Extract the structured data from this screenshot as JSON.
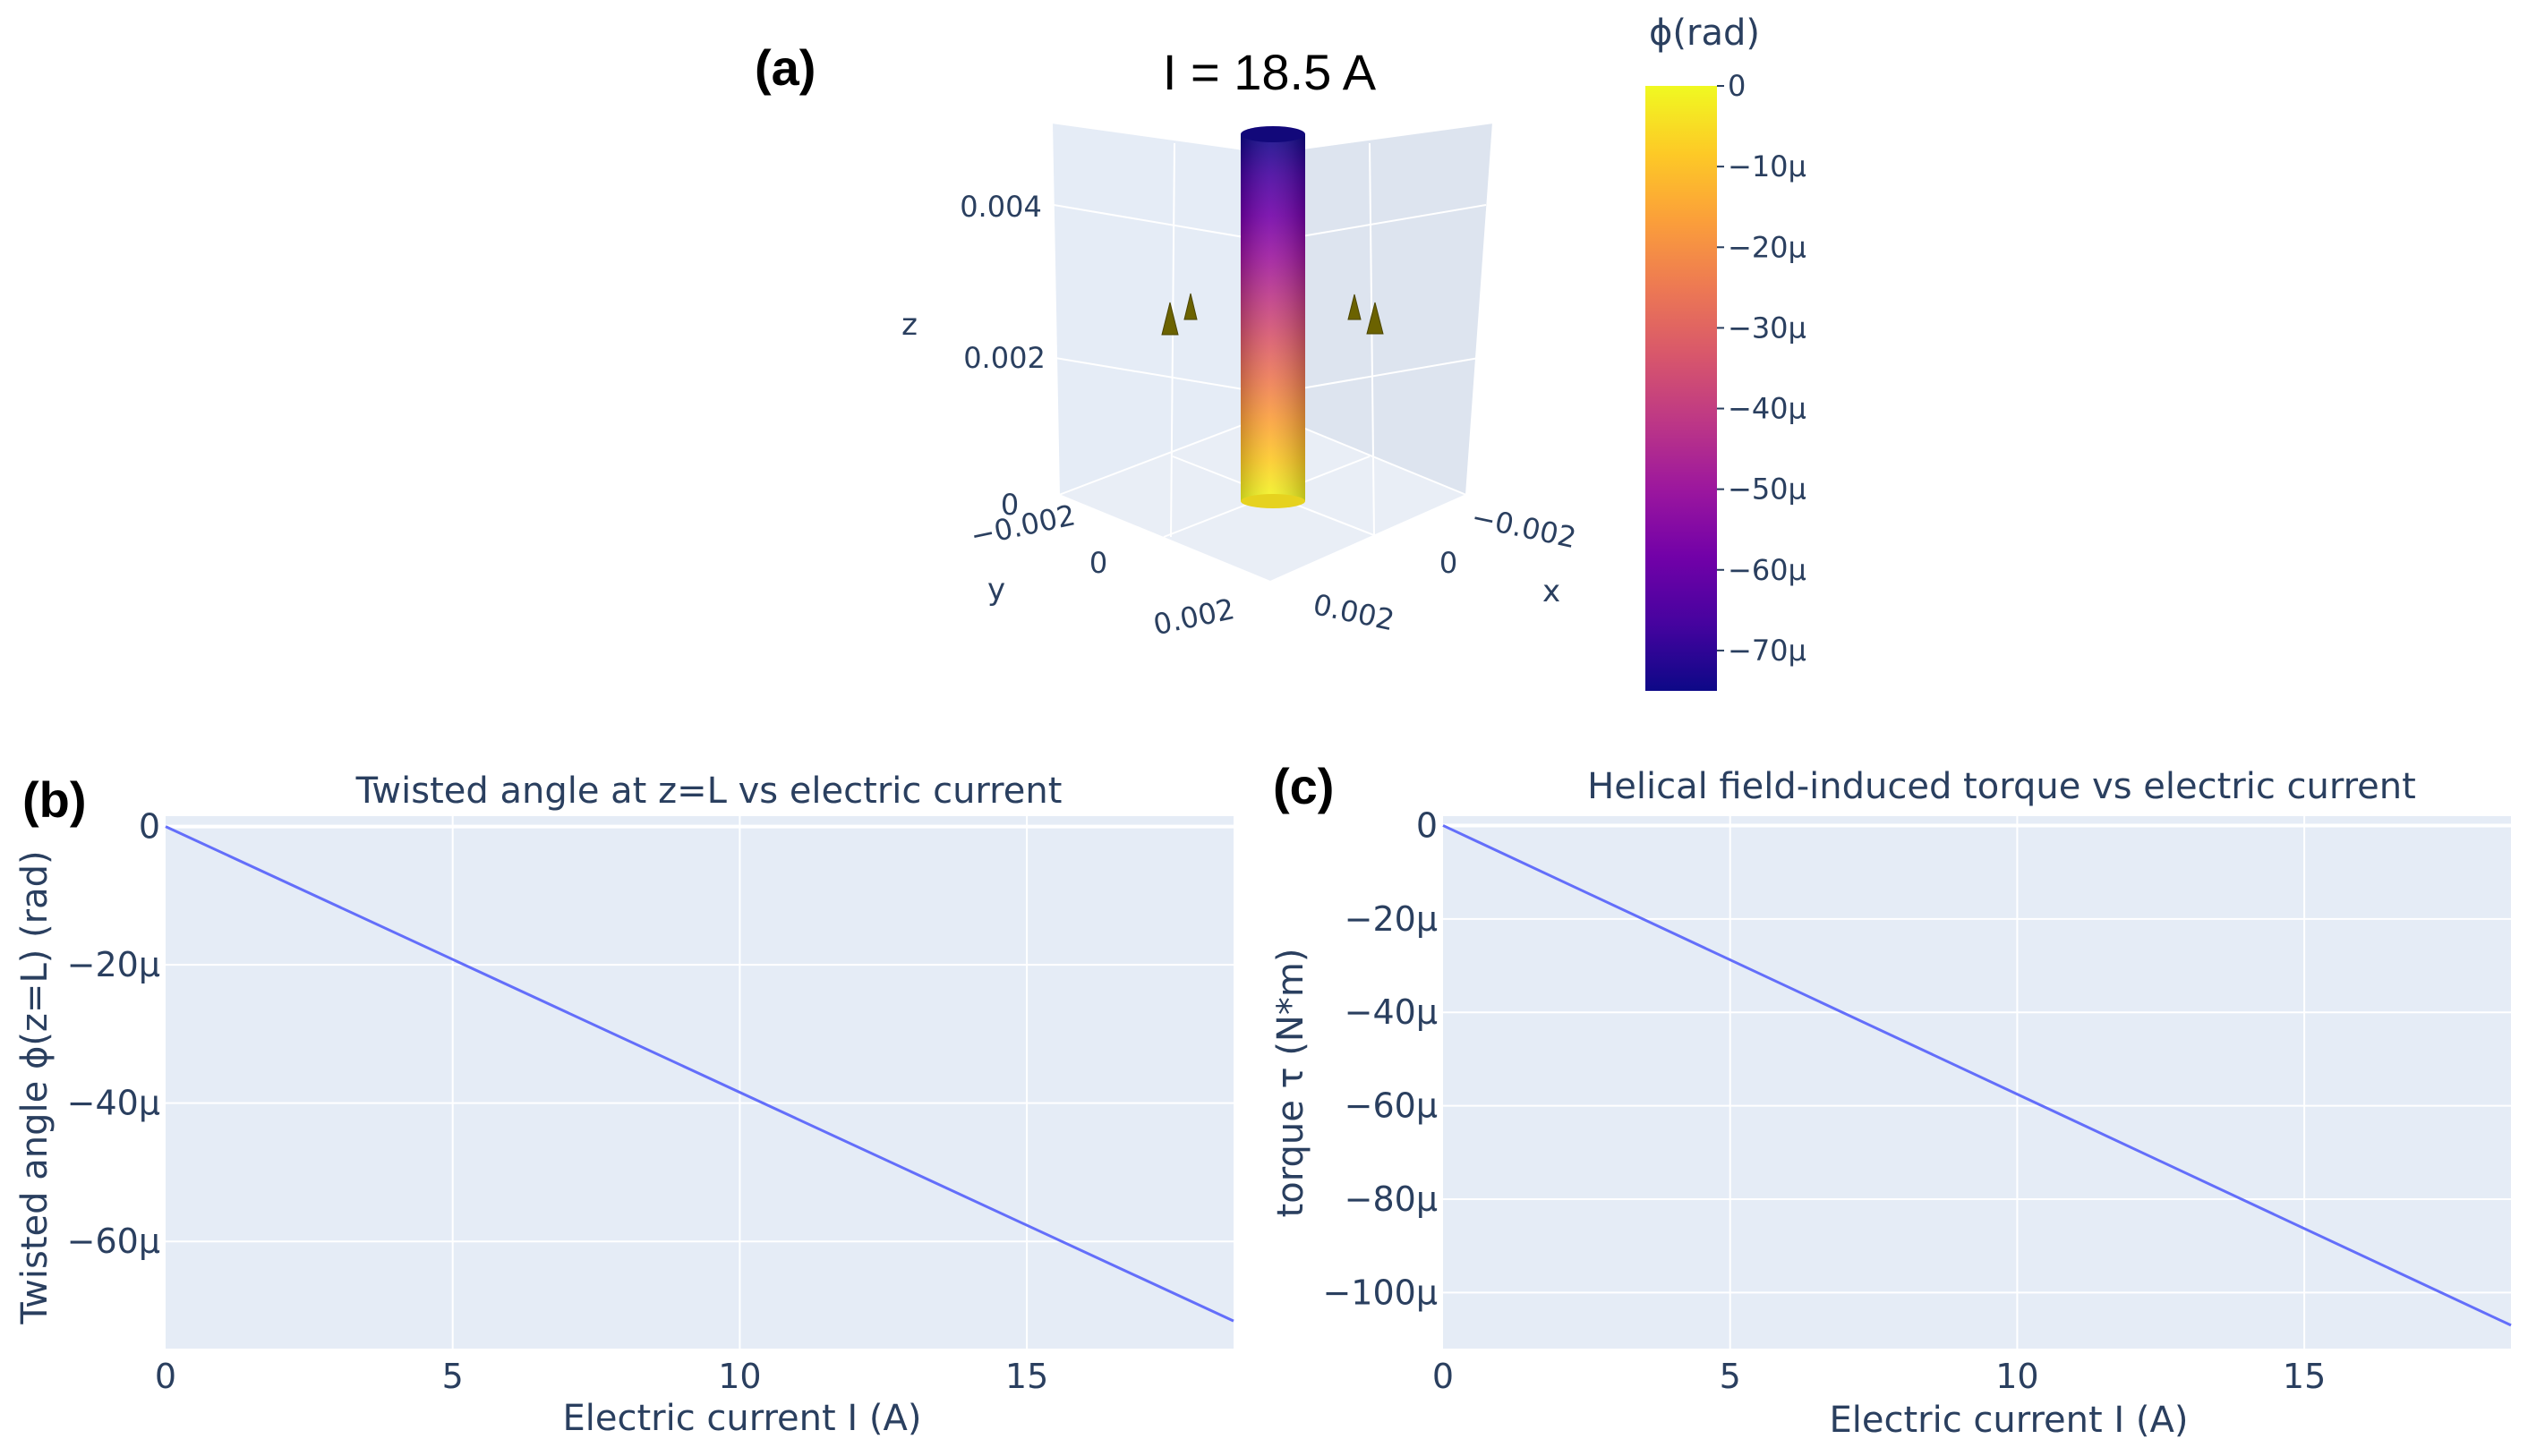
{
  "panel_labels": {
    "a": "(a)",
    "b": "(b)",
    "c": "(c)"
  },
  "colors": {
    "plot_bg": "#e5ecf6",
    "grid": "#ffffff",
    "line": "#636efa",
    "text": "#2a3f5f",
    "marker": "#6b6200"
  },
  "chart_data": [
    {
      "type": "surface3d",
      "title": "I = 18.5 A",
      "axes": {
        "x": {
          "label": "x",
          "ticks": [
            "−0.002",
            "0",
            "0.002"
          ]
        },
        "y": {
          "label": "y",
          "ticks": [
            "−0.002",
            "0",
            "0.002"
          ]
        },
        "z": {
          "label": "z",
          "ticks": [
            "0",
            "0.002",
            "0.004"
          ]
        }
      },
      "colorbar": {
        "title": "ϕ(rad)",
        "range": [
          -7.5e-05,
          0
        ],
        "ticks": [
          {
            "value": 0,
            "label": "0"
          },
          {
            "value": -1e-05,
            "label": "−10μ"
          },
          {
            "value": -2e-05,
            "label": "−20μ"
          },
          {
            "value": -3e-05,
            "label": "−30μ"
          },
          {
            "value": -4e-05,
            "label": "−40μ"
          },
          {
            "value": -5e-05,
            "label": "−50μ"
          },
          {
            "value": -6e-05,
            "label": "−60μ"
          },
          {
            "value": -7e-05,
            "label": "−70μ"
          }
        ],
        "colorscale": [
          "#0d0887",
          "#46039f",
          "#7201a8",
          "#9c179e",
          "#bd3786",
          "#d8576b",
          "#ed7953",
          "#fb9f3a",
          "#fdca26",
          "#f0f921"
        ]
      }
    },
    {
      "type": "line",
      "title": "Twisted angle at z=L vs electric current",
      "xlabel": "Electric current I (A)",
      "ylabel": "Twisted angle ϕ(z=L) (rad)",
      "xlim": [
        0,
        18.6
      ],
      "ylim": [
        -7.55e-05,
        1.5e-06
      ],
      "xticks": [
        {
          "value": 0,
          "label": "0"
        },
        {
          "value": 5,
          "label": "5"
        },
        {
          "value": 10,
          "label": "10"
        },
        {
          "value": 15,
          "label": "15"
        }
      ],
      "yticks": [
        {
          "value": 0,
          "label": "0"
        },
        {
          "value": -2e-05,
          "label": "−20μ"
        },
        {
          "value": -4e-05,
          "label": "−40μ"
        },
        {
          "value": -6e-05,
          "label": "−60μ"
        }
      ],
      "series": [
        {
          "name": "phi",
          "x": [
            0,
            18.6
          ],
          "y": [
            0,
            -7.15e-05
          ]
        }
      ]
    },
    {
      "type": "line",
      "title": "Helical field-induced torque vs electric current",
      "xlabel": "Electric current I (A)",
      "ylabel": "torque τ (N*m)",
      "xlim": [
        0,
        18.6
      ],
      "ylim": [
        -0.000112,
        2e-06
      ],
      "xticks": [
        {
          "value": 0,
          "label": "0"
        },
        {
          "value": 5,
          "label": "5"
        },
        {
          "value": 10,
          "label": "10"
        },
        {
          "value": 15,
          "label": "15"
        }
      ],
      "yticks": [
        {
          "value": 0,
          "label": "0"
        },
        {
          "value": -2e-05,
          "label": "−20μ"
        },
        {
          "value": -4e-05,
          "label": "−40μ"
        },
        {
          "value": -6e-05,
          "label": "−60μ"
        },
        {
          "value": -8e-05,
          "label": "−80μ"
        },
        {
          "value": -0.0001,
          "label": "−100μ"
        }
      ],
      "series": [
        {
          "name": "torque",
          "x": [
            0,
            18.6
          ],
          "y": [
            0,
            -0.000107
          ]
        }
      ]
    }
  ]
}
